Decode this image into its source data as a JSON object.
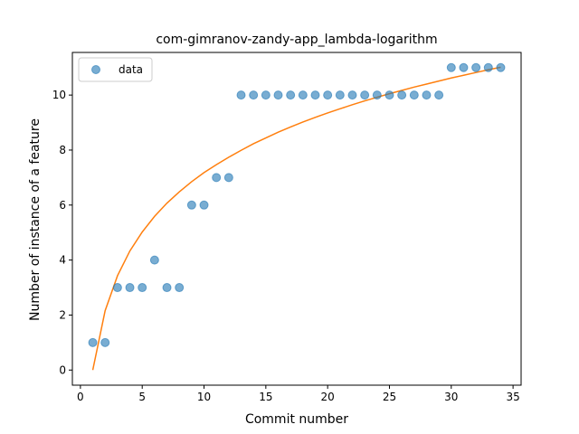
{
  "chart_data": {
    "type": "scatter",
    "title": "com-gimranov-zandy-app_lambda-logarithm",
    "xlabel": "Commit number",
    "ylabel": "Number of instance of a feature",
    "xlim": [
      -0.65,
      35.65
    ],
    "ylim": [
      -0.55,
      11.55
    ],
    "xticks": [
      0,
      5,
      10,
      15,
      20,
      25,
      30,
      35
    ],
    "yticks": [
      0,
      2,
      4,
      6,
      8,
      10
    ],
    "legend": {
      "position": "upper-left",
      "entries": [
        "data"
      ]
    },
    "series": [
      {
        "name": "data",
        "kind": "scatter",
        "color": "#1f77b4",
        "x": [
          1,
          2,
          3,
          4,
          5,
          6,
          7,
          8,
          9,
          10,
          11,
          12,
          13,
          14,
          15,
          16,
          17,
          18,
          19,
          20,
          21,
          22,
          23,
          24,
          25,
          26,
          27,
          28,
          29,
          30,
          31,
          32,
          33,
          34
        ],
        "y": [
          1,
          1,
          3,
          3,
          3,
          4,
          3,
          3,
          6,
          6,
          7,
          7,
          10,
          10,
          10,
          10,
          10,
          10,
          10,
          10,
          10,
          10,
          10,
          10,
          10,
          10,
          10,
          10,
          10,
          11,
          11,
          11,
          11,
          11
        ]
      },
      {
        "kind": "line",
        "color": "#ff7f0e",
        "x": [
          1,
          2,
          3,
          4,
          5,
          6,
          7,
          8,
          9,
          10,
          11,
          12,
          13,
          14,
          15,
          16,
          17,
          18,
          19,
          20,
          21,
          22,
          23,
          24,
          25,
          26,
          27,
          28,
          29,
          30,
          31,
          32,
          33,
          34
        ],
        "y": [
          0,
          2.16,
          3.43,
          4.33,
          5.02,
          5.59,
          6.07,
          6.48,
          6.85,
          7.18,
          7.47,
          7.74,
          7.99,
          8.23,
          8.44,
          8.65,
          8.84,
          9.02,
          9.19,
          9.35,
          9.5,
          9.65,
          9.79,
          9.92,
          10.05,
          10.17,
          10.29,
          10.4,
          10.51,
          10.62,
          10.72,
          10.82,
          10.92,
          11.01
        ]
      }
    ]
  }
}
